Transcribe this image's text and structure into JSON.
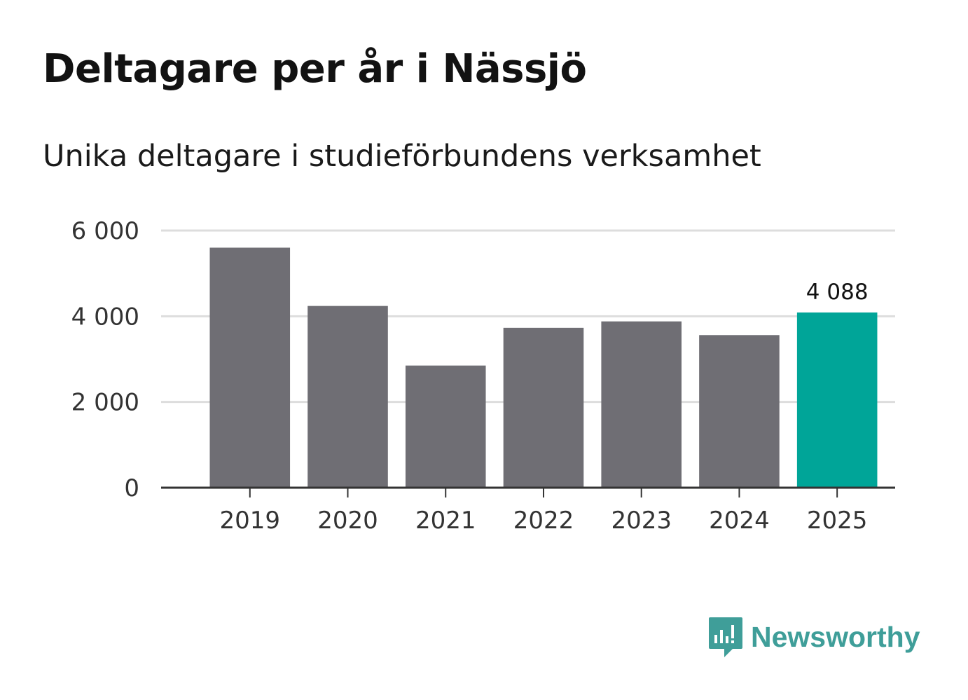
{
  "header": {
    "title": "Deltagare per år i Nässjö",
    "subtitle": "Unika deltagare i studieförbundens verksamhet"
  },
  "chart_data": {
    "type": "bar",
    "title": "Deltagare per år i Nässjö",
    "subtitle": "Unika deltagare i studieförbundens verksamhet",
    "categories": [
      "2019",
      "2020",
      "2021",
      "2022",
      "2023",
      "2024",
      "2025"
    ],
    "values": [
      5600,
      4240,
      2850,
      3730,
      3880,
      3560,
      4088
    ],
    "highlight_index": 6,
    "highlight_label": "4 088",
    "ylim": [
      0,
      6000
    ],
    "yticks": [
      0,
      2000,
      4000,
      6000
    ],
    "ytick_labels": [
      "0",
      "2 000",
      "4 000",
      "6 000"
    ],
    "xlabel": "",
    "ylabel": "",
    "grid": true,
    "colors": {
      "bar": "#6f6e74",
      "highlight": "#00a598",
      "grid": "#dddddd",
      "axis": "#333333"
    }
  },
  "brand": {
    "name": "Newsworthy",
    "icon": "newsworthy-logo-icon",
    "color": "#3f9e99"
  }
}
